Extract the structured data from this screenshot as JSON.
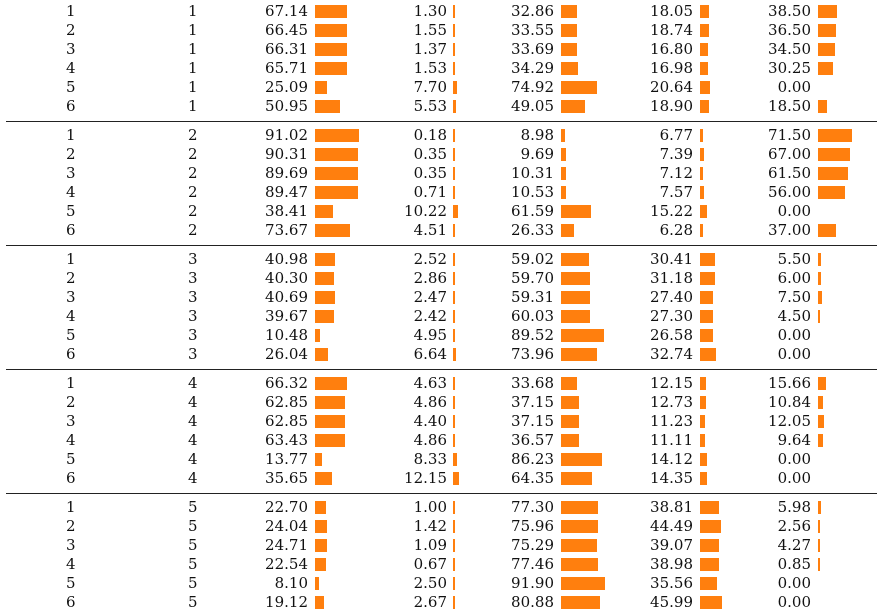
{
  "bar_color": "#ff7f0e",
  "scales": {
    "col1": 100,
    "col2": 100,
    "col3": 100,
    "col4": 100,
    "col5": 100
  },
  "groups": [
    {
      "rows": [
        {
          "a": "1",
          "b": "1",
          "v": [
            "67.14",
            "1.30",
            "32.86",
            "18.05",
            "38.50"
          ]
        },
        {
          "a": "2",
          "b": "1",
          "v": [
            "66.45",
            "1.55",
            "33.55",
            "18.74",
            "36.50"
          ]
        },
        {
          "a": "3",
          "b": "1",
          "v": [
            "66.31",
            "1.37",
            "33.69",
            "16.80",
            "34.50"
          ]
        },
        {
          "a": "4",
          "b": "1",
          "v": [
            "65.71",
            "1.53",
            "34.29",
            "16.98",
            "30.25"
          ]
        },
        {
          "a": "5",
          "b": "1",
          "v": [
            "25.09",
            "7.70",
            "74.92",
            "20.64",
            "0.00"
          ]
        },
        {
          "a": "6",
          "b": "1",
          "v": [
            "50.95",
            "5.53",
            "49.05",
            "18.90",
            "18.50"
          ]
        }
      ]
    },
    {
      "rows": [
        {
          "a": "1",
          "b": "2",
          "v": [
            "91.02",
            "0.18",
            "8.98",
            "6.77",
            "71.50"
          ]
        },
        {
          "a": "2",
          "b": "2",
          "v": [
            "90.31",
            "0.35",
            "9.69",
            "7.39",
            "67.00"
          ]
        },
        {
          "a": "3",
          "b": "2",
          "v": [
            "89.69",
            "0.35",
            "10.31",
            "7.12",
            "61.50"
          ]
        },
        {
          "a": "4",
          "b": "2",
          "v": [
            "89.47",
            "0.71",
            "10.53",
            "7.57",
            "56.00"
          ]
        },
        {
          "a": "5",
          "b": "2",
          "v": [
            "38.41",
            "10.22",
            "61.59",
            "15.22",
            "0.00"
          ]
        },
        {
          "a": "6",
          "b": "2",
          "v": [
            "73.67",
            "4.51",
            "26.33",
            "6.28",
            "37.00"
          ]
        }
      ]
    },
    {
      "rows": [
        {
          "a": "1",
          "b": "3",
          "v": [
            "40.98",
            "2.52",
            "59.02",
            "30.41",
            "5.50"
          ]
        },
        {
          "a": "2",
          "b": "3",
          "v": [
            "40.30",
            "2.86",
            "59.70",
            "31.18",
            "6.00"
          ]
        },
        {
          "a": "3",
          "b": "3",
          "v": [
            "40.69",
            "2.47",
            "59.31",
            "27.40",
            "7.50"
          ]
        },
        {
          "a": "4",
          "b": "3",
          "v": [
            "39.67",
            "2.42",
            "60.03",
            "27.30",
            "4.50"
          ]
        },
        {
          "a": "5",
          "b": "3",
          "v": [
            "10.48",
            "4.95",
            "89.52",
            "26.58",
            "0.00"
          ]
        },
        {
          "a": "6",
          "b": "3",
          "v": [
            "26.04",
            "6.64",
            "73.96",
            "32.74",
            "0.00"
          ]
        }
      ]
    },
    {
      "rows": [
        {
          "a": "1",
          "b": "4",
          "v": [
            "66.32",
            "4.63",
            "33.68",
            "12.15",
            "15.66"
          ]
        },
        {
          "a": "2",
          "b": "4",
          "v": [
            "62.85",
            "4.86",
            "37.15",
            "12.73",
            "10.84"
          ]
        },
        {
          "a": "3",
          "b": "4",
          "v": [
            "62.85",
            "4.40",
            "37.15",
            "11.23",
            "12.05"
          ]
        },
        {
          "a": "4",
          "b": "4",
          "v": [
            "63.43",
            "4.86",
            "36.57",
            "11.11",
            "9.64"
          ]
        },
        {
          "a": "5",
          "b": "4",
          "v": [
            "13.77",
            "8.33",
            "86.23",
            "14.12",
            "0.00"
          ]
        },
        {
          "a": "6",
          "b": "4",
          "v": [
            "35.65",
            "12.15",
            "64.35",
            "14.35",
            "0.00"
          ]
        }
      ]
    },
    {
      "rows": [
        {
          "a": "1",
          "b": "5",
          "v": [
            "22.70",
            "1.00",
            "77.30",
            "38.81",
            "5.98"
          ]
        },
        {
          "a": "2",
          "b": "5",
          "v": [
            "24.04",
            "1.42",
            "75.96",
            "44.49",
            "2.56"
          ]
        },
        {
          "a": "3",
          "b": "5",
          "v": [
            "24.71",
            "1.09",
            "75.29",
            "39.07",
            "4.27"
          ]
        },
        {
          "a": "4",
          "b": "5",
          "v": [
            "22.54",
            "0.67",
            "77.46",
            "38.98",
            "0.85"
          ]
        },
        {
          "a": "5",
          "b": "5",
          "v": [
            "8.10",
            "2.50",
            "91.90",
            "35.56",
            "0.00"
          ]
        },
        {
          "a": "6",
          "b": "5",
          "v": [
            "19.12",
            "2.67",
            "80.88",
            "45.99",
            "0.00"
          ]
        }
      ]
    }
  ]
}
